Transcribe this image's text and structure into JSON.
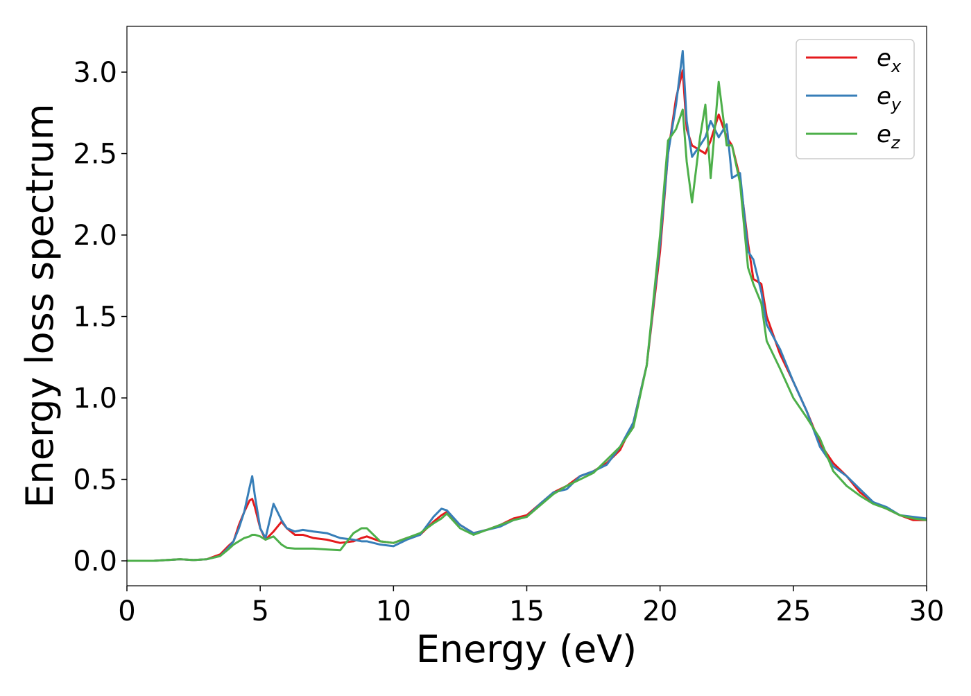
{
  "chart_data": {
    "type": "line",
    "xlabel": "Energy (eV)",
    "ylabel": "Energy loss spectrum",
    "x": [
      0,
      1,
      2,
      2.5,
      3,
      3.5,
      3.8,
      4,
      4.2,
      4.4,
      4.6,
      4.7,
      4.8,
      5,
      5.2,
      5.5,
      5.8,
      6,
      6.3,
      6.6,
      7,
      7.5,
      8,
      8.5,
      8.8,
      9,
      9.5,
      10,
      10.5,
      11,
      11.5,
      11.8,
      12,
      12.5,
      13,
      13.5,
      14,
      14.5,
      15,
      15.5,
      16,
      16.5,
      17,
      17.5,
      18,
      18.5,
      19,
      19.5,
      20,
      20.3,
      20.6,
      20.85,
      21,
      21.2,
      21.5,
      21.7,
      21.9,
      22.2,
      22.5,
      22.7,
      23,
      23.3,
      23.5,
      23.8,
      24,
      24.5,
      25,
      25.5,
      26,
      26.5,
      27,
      27.5,
      28,
      28.5,
      29,
      29.5,
      30
    ],
    "series": [
      {
        "name": "ex",
        "color": "#e41a1c",
        "values": [
          0,
          0,
          0.01,
          0.005,
          0.01,
          0.04,
          0.09,
          0.12,
          0.22,
          0.3,
          0.37,
          0.38,
          0.33,
          0.2,
          0.13,
          0.18,
          0.24,
          0.2,
          0.16,
          0.16,
          0.14,
          0.13,
          0.11,
          0.12,
          0.14,
          0.15,
          0.12,
          0.11,
          0.14,
          0.16,
          0.24,
          0.28,
          0.3,
          0.22,
          0.17,
          0.19,
          0.22,
          0.26,
          0.28,
          0.35,
          0.42,
          0.46,
          0.52,
          0.55,
          0.6,
          0.68,
          0.85,
          1.2,
          1.9,
          2.5,
          2.84,
          3.01,
          2.65,
          2.55,
          2.52,
          2.5,
          2.58,
          2.74,
          2.6,
          2.55,
          2.35,
          1.95,
          1.73,
          1.7,
          1.5,
          1.27,
          1.1,
          0.92,
          0.72,
          0.6,
          0.52,
          0.42,
          0.36,
          0.32,
          0.28,
          0.25,
          0.25
        ]
      },
      {
        "name": "ey",
        "color": "#377eb8",
        "values": [
          0,
          0,
          0.01,
          0.005,
          0.01,
          0.03,
          0.08,
          0.12,
          0.2,
          0.3,
          0.45,
          0.52,
          0.4,
          0.2,
          0.14,
          0.35,
          0.25,
          0.2,
          0.18,
          0.19,
          0.18,
          0.17,
          0.14,
          0.13,
          0.12,
          0.12,
          0.1,
          0.09,
          0.13,
          0.16,
          0.27,
          0.32,
          0.31,
          0.22,
          0.17,
          0.19,
          0.21,
          0.25,
          0.27,
          0.35,
          0.42,
          0.44,
          0.52,
          0.55,
          0.59,
          0.7,
          0.85,
          1.2,
          1.95,
          2.5,
          2.8,
          3.13,
          2.7,
          2.48,
          2.55,
          2.6,
          2.7,
          2.6,
          2.68,
          2.35,
          2.38,
          1.9,
          1.85,
          1.65,
          1.45,
          1.3,
          1.1,
          0.92,
          0.7,
          0.58,
          0.52,
          0.44,
          0.36,
          0.33,
          0.28,
          0.27,
          0.26
        ]
      },
      {
        "name": "ez",
        "color": "#4daf4a",
        "values": [
          0,
          0,
          0.01,
          0.005,
          0.01,
          0.03,
          0.07,
          0.1,
          0.12,
          0.14,
          0.15,
          0.16,
          0.16,
          0.15,
          0.13,
          0.15,
          0.1,
          0.08,
          0.075,
          0.075,
          0.075,
          0.07,
          0.065,
          0.17,
          0.2,
          0.2,
          0.12,
          0.11,
          0.14,
          0.17,
          0.23,
          0.26,
          0.29,
          0.2,
          0.16,
          0.19,
          0.22,
          0.25,
          0.27,
          0.34,
          0.41,
          0.46,
          0.5,
          0.54,
          0.62,
          0.7,
          0.82,
          1.2,
          2.0,
          2.58,
          2.65,
          2.77,
          2.45,
          2.2,
          2.6,
          2.8,
          2.35,
          2.94,
          2.55,
          2.55,
          2.32,
          1.8,
          1.7,
          1.58,
          1.35,
          1.18,
          1.0,
          0.88,
          0.75,
          0.55,
          0.46,
          0.4,
          0.35,
          0.32,
          0.28,
          0.26,
          0.25
        ]
      }
    ],
    "xlim": [
      0,
      30
    ],
    "ylim": [
      -0.153,
      3.281
    ],
    "xticks": [
      0,
      5,
      10,
      15,
      20,
      25,
      30
    ],
    "yticks": [
      {
        "value": 0,
        "label": "0.0"
      },
      0.5,
      {
        "value": 1,
        "label": "1.0"
      },
      1.5,
      {
        "value": 2,
        "label": "2.0"
      },
      2.5,
      {
        "value": 3,
        "label": "3.0"
      }
    ],
    "legend": "upper right"
  }
}
